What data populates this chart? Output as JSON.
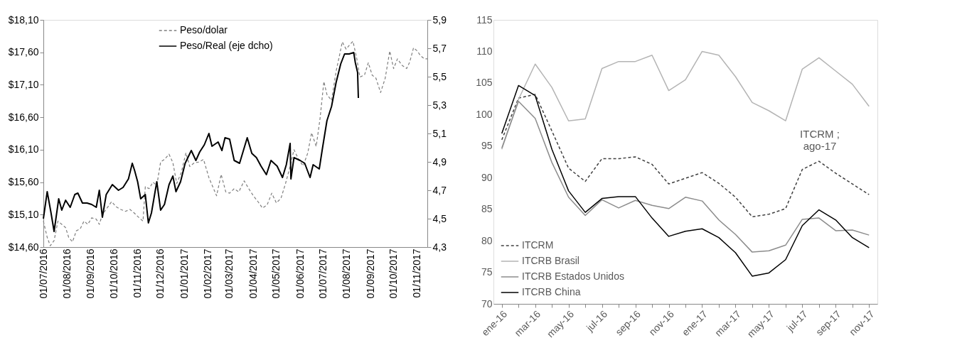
{
  "chart_data": [
    {
      "type": "line",
      "legend": "top",
      "grid": false,
      "tick_labels": true,
      "xlim": [
        "2016-07-01",
        "2017-11-14"
      ],
      "xticks": [
        {
          "value": "2016-07-01",
          "label": "01/07/2016"
        },
        {
          "value": "2016-08-01",
          "label": "01/08/2016"
        },
        {
          "value": "2016-09-01",
          "label": "01/09/2016"
        },
        {
          "value": "2016-10-01",
          "label": "01/10/2016"
        },
        {
          "value": "2016-11-01",
          "label": "01/11/2016"
        },
        {
          "value": "2016-12-01",
          "label": "01/12/2016"
        },
        {
          "value": "2017-01-01",
          "label": "01/01/2017"
        },
        {
          "value": "2017-02-01",
          "label": "01/02/2017"
        },
        {
          "value": "2017-03-01",
          "label": "01/03/2017"
        },
        {
          "value": "2017-04-01",
          "label": "01/04/2017"
        },
        {
          "value": "2017-05-01",
          "label": "01/05/2017"
        },
        {
          "value": "2017-06-01",
          "label": "01/06/2017"
        },
        {
          "value": "2017-07-01",
          "label": "01/07/2017"
        },
        {
          "value": "2017-08-01",
          "label": "01/08/2017"
        },
        {
          "value": "2017-09-01",
          "label": "01/09/2017"
        },
        {
          "value": "2017-10-01",
          "label": "01/10/2017"
        },
        {
          "value": "2017-11-01",
          "label": "01/11/2017"
        }
      ],
      "ylim": [
        14.6,
        18.1
      ],
      "yticks": [
        {
          "value": 14.6,
          "label": "$14,60"
        },
        {
          "value": 15.1,
          "label": "$15,10"
        },
        {
          "value": 15.6,
          "label": "$15,60"
        },
        {
          "value": 16.1,
          "label": "$16,10"
        },
        {
          "value": 16.6,
          "label": "$16,60"
        },
        {
          "value": 17.1,
          "label": "$17,10"
        },
        {
          "value": 17.6,
          "label": "$17,60"
        },
        {
          "value": 18.1,
          "label": "$18,10"
        }
      ],
      "y2lim": [
        4.3,
        5.9
      ],
      "y2ticks": [
        {
          "value": 4.3,
          "label": "4,3"
        },
        {
          "value": 4.5,
          "label": "4,5"
        },
        {
          "value": 4.7,
          "label": "4,7"
        },
        {
          "value": 4.9,
          "label": "4,9"
        },
        {
          "value": 5.1,
          "label": "5,1"
        },
        {
          "value": 5.3,
          "label": "5,3"
        },
        {
          "value": 5.5,
          "label": "5,5"
        },
        {
          "value": 5.7,
          "label": "5,7"
        },
        {
          "value": 5.9,
          "label": "5,9"
        }
      ],
      "series": [
        {
          "name": "Peso/dolar",
          "color": "#7f7f7f",
          "line_style": "dashed",
          "x": [
            "2016-07-01",
            "2016-07-06",
            "2016-07-10",
            "2016-07-15",
            "2016-07-20",
            "2016-07-25",
            "2016-07-30",
            "2016-08-03",
            "2016-08-08",
            "2016-08-13",
            "2016-08-18",
            "2016-08-23",
            "2016-08-28",
            "2016-09-02",
            "2016-09-08",
            "2016-09-12",
            "2016-09-16",
            "2016-09-22",
            "2016-09-28",
            "2016-10-04",
            "2016-10-10",
            "2016-10-16",
            "2016-10-22",
            "2016-10-28",
            "2016-11-03",
            "2016-11-08",
            "2016-11-11",
            "2016-11-16",
            "2016-11-21",
            "2016-11-26",
            "2016-12-01",
            "2016-12-06",
            "2016-12-12",
            "2016-12-17",
            "2016-12-22",
            "2016-12-28",
            "2017-01-03",
            "2017-01-08",
            "2017-01-14",
            "2017-01-20",
            "2017-01-26",
            "2017-02-02",
            "2017-02-07",
            "2017-02-12",
            "2017-02-18",
            "2017-02-24",
            "2017-03-01",
            "2017-03-07",
            "2017-03-13",
            "2017-03-20",
            "2017-03-26",
            "2017-04-01",
            "2017-04-07",
            "2017-04-13",
            "2017-04-19",
            "2017-04-25",
            "2017-05-01",
            "2017-05-07",
            "2017-05-13",
            "2017-05-18",
            "2017-05-24",
            "2017-05-30",
            "2017-06-05",
            "2017-06-11",
            "2017-06-16",
            "2017-06-22",
            "2017-06-27",
            "2017-07-02",
            "2017-07-06",
            "2017-07-12",
            "2017-07-18",
            "2017-07-22",
            "2017-07-26",
            "2017-07-31",
            "2017-08-05",
            "2017-08-09",
            "2017-08-14",
            "2017-08-18",
            "2017-08-24",
            "2017-08-29",
            "2017-09-03",
            "2017-09-08",
            "2017-09-14",
            "2017-09-20",
            "2017-09-26",
            "2017-10-01",
            "2017-10-06",
            "2017-10-12",
            "2017-10-18",
            "2017-10-22",
            "2017-10-27",
            "2017-11-01",
            "2017-11-05",
            "2017-11-10",
            "2017-11-14"
          ],
          "values": [
            15.0,
            14.75,
            14.62,
            14.7,
            15.0,
            14.95,
            14.9,
            14.75,
            14.68,
            14.85,
            14.88,
            15.0,
            14.95,
            15.05,
            15.03,
            14.95,
            15.1,
            15.2,
            15.3,
            15.22,
            15.18,
            15.15,
            15.18,
            15.12,
            15.05,
            15.0,
            15.53,
            15.5,
            15.6,
            15.55,
            15.91,
            15.95,
            16.03,
            15.9,
            15.58,
            15.75,
            16.05,
            15.84,
            15.9,
            15.91,
            15.95,
            15.67,
            15.53,
            15.39,
            15.72,
            15.45,
            15.43,
            15.5,
            15.45,
            15.62,
            15.5,
            15.39,
            15.3,
            15.2,
            15.25,
            15.43,
            15.28,
            15.35,
            15.58,
            15.8,
            16.1,
            15.95,
            15.85,
            16.05,
            16.36,
            16.15,
            16.58,
            17.15,
            16.95,
            16.86,
            17.31,
            17.53,
            17.76,
            17.65,
            17.72,
            17.77,
            17.5,
            17.22,
            17.25,
            17.44,
            17.25,
            17.2,
            16.98,
            17.2,
            17.62,
            17.35,
            17.5,
            17.4,
            17.35,
            17.45,
            17.67,
            17.62,
            17.55,
            17.5,
            17.5
          ]
        },
        {
          "name": "Peso/Real (eje dcho)",
          "color": "#000000",
          "line_style": "solid",
          "axis": "y2",
          "x": [
            "2016-07-01",
            "2016-07-06",
            "2016-07-11",
            "2016-07-15",
            "2016-07-21",
            "2016-07-25",
            "2016-07-30",
            "2016-08-05",
            "2016-08-11",
            "2016-08-15",
            "2016-08-21",
            "2016-08-27",
            "2016-09-02",
            "2016-09-08",
            "2016-09-12",
            "2016-09-16",
            "2016-09-21",
            "2016-09-29",
            "2016-10-07",
            "2016-10-13",
            "2016-10-20",
            "2016-10-25",
            "2016-10-28",
            "2016-11-01",
            "2016-11-05",
            "2016-11-11",
            "2016-11-15",
            "2016-11-19",
            "2016-11-26",
            "2016-12-01",
            "2016-12-06",
            "2016-12-12",
            "2016-12-17",
            "2016-12-21",
            "2016-12-27",
            "2017-01-02",
            "2017-01-10",
            "2017-01-16",
            "2017-01-21",
            "2017-01-27",
            "2017-02-02",
            "2017-02-06",
            "2017-02-14",
            "2017-02-19",
            "2017-02-23",
            "2017-03-01",
            "2017-03-07",
            "2017-03-14",
            "2017-03-24",
            "2017-03-30",
            "2017-04-05",
            "2017-04-11",
            "2017-04-18",
            "2017-04-24",
            "2017-05-02",
            "2017-05-09",
            "2017-05-14",
            "2017-05-19",
            "2017-05-20",
            "2017-05-24",
            "2017-06-01",
            "2017-06-07",
            "2017-06-14",
            "2017-06-18",
            "2017-06-26",
            "2017-06-30",
            "2017-07-06",
            "2017-07-12",
            "2017-07-18",
            "2017-07-24",
            "2017-07-29",
            "2017-08-04",
            "2017-08-10",
            "2017-08-12",
            "2017-08-15",
            "2017-08-16"
          ],
          "values": [
            4.5,
            4.69,
            4.54,
            4.41,
            4.64,
            4.56,
            4.63,
            4.58,
            4.67,
            4.68,
            4.61,
            4.61,
            4.6,
            4.58,
            4.7,
            4.51,
            4.67,
            4.74,
            4.7,
            4.72,
            4.78,
            4.89,
            4.84,
            4.76,
            4.64,
            4.67,
            4.47,
            4.54,
            4.76,
            4.56,
            4.6,
            4.74,
            4.8,
            4.69,
            4.76,
            4.89,
            4.98,
            4.91,
            4.97,
            5.02,
            5.1,
            5.01,
            5.04,
            4.98,
            5.07,
            5.06,
            4.91,
            4.89,
            5.07,
            4.96,
            4.93,
            4.87,
            4.81,
            4.91,
            4.87,
            4.79,
            4.88,
            5.03,
            4.78,
            4.93,
            4.91,
            4.89,
            4.79,
            4.88,
            4.85,
            4.99,
            5.19,
            5.29,
            5.46,
            5.59,
            5.66,
            5.66,
            5.67,
            5.6,
            5.53,
            5.35
          ]
        }
      ]
    },
    {
      "type": "line",
      "legend": "bottom left",
      "grid": false,
      "categories": [
        "ene-16",
        null,
        "mar-16",
        null,
        "may-16",
        null,
        "jul-16",
        null,
        "sep-16",
        null,
        "nov-16",
        null,
        "ene-17",
        null,
        "mar-17",
        null,
        "may-17",
        null,
        "jul-17",
        null,
        "sep-17",
        null,
        "nov-17"
      ],
      "ylim": [
        70,
        115
      ],
      "yticks": [
        70,
        75,
        80,
        85,
        90,
        95,
        100,
        105,
        110,
        115
      ],
      "annotations": [
        {
          "text": "ITCRM ;\nago-17",
          "y": 92.6
        }
      ],
      "series": [
        {
          "name": "ITCRM",
          "color": "#404040",
          "line_style": "dashed",
          "values": [
            96,
            102.6,
            103.2,
            97.4,
            91.5,
            89.4,
            93,
            93,
            93.3,
            92.1,
            89,
            89.9,
            90.8,
            89.1,
            86.9,
            83.8,
            84.2,
            85.1,
            91.3,
            92.6,
            90.7,
            89,
            87.3
          ]
        },
        {
          "name": "ITCRB Brasil",
          "color": "#b4b4b4",
          "line_style": "solid",
          "values": [
            94.5,
            102.4,
            108,
            104.3,
            99,
            99.3,
            107.3,
            108.4,
            108.4,
            109.4,
            103.8,
            105.5,
            110,
            109.4,
            106,
            101.9,
            100.6,
            99,
            107.2,
            109,
            106.9,
            104.8,
            101.3
          ]
        },
        {
          "name": "ITCRB Estados Unidos",
          "color": "#8c8c8c",
          "line_style": "solid",
          "values": [
            94.7,
            102.1,
            99.4,
            92.4,
            86.9,
            84,
            86.5,
            85.2,
            86.4,
            85.6,
            85.1,
            86.9,
            86.3,
            83.3,
            81,
            78.2,
            78.4,
            79.3,
            83.4,
            83.6,
            81.6,
            81.7,
            80.9
          ]
        },
        {
          "name": "ITCRB China",
          "color": "#000000",
          "line_style": "solid",
          "values": [
            97,
            104.6,
            103,
            94.5,
            87.9,
            84.5,
            86.7,
            87,
            87,
            83.6,
            80.7,
            81.5,
            81.9,
            80.5,
            78.1,
            74.4,
            74.9,
            77,
            82.4,
            84.9,
            83.3,
            80.5,
            78.9
          ]
        }
      ]
    }
  ]
}
